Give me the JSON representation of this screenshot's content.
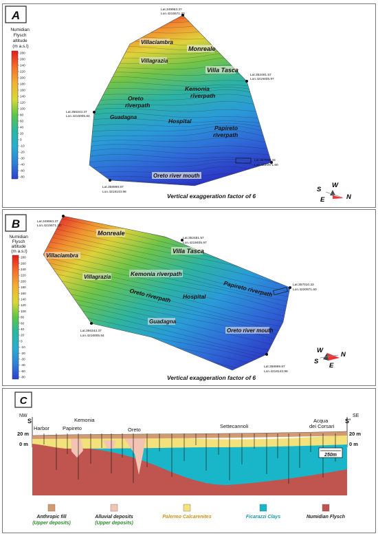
{
  "panels": {
    "a": {
      "letter": "A",
      "legend_title": [
        "Numidian",
        "Flysch",
        "altitude",
        "(m a.s.l)"
      ],
      "legend_ticks": [
        "280",
        "260",
        "240",
        "220",
        "200",
        "180",
        "160",
        "140",
        "120",
        "100",
        "80",
        "60",
        "40",
        "20",
        "0",
        "-10",
        "-20",
        "-30",
        "-40",
        "-60",
        "-80"
      ],
      "place_labels": {
        "villaciambra": "Villaciambra",
        "monreale": "Monreale",
        "villagrazia": "Villagrazia",
        "villa_tasca": "Villa Tasca",
        "kemonia": "Kemonia riverpath",
        "oreto": "Oreto riverpath",
        "guadagna": "Guadagna",
        "hospital": "Hospital",
        "papireto": "Papireto riverpath",
        "mouth": "Oreto river mouth"
      },
      "coordinates": {
        "top": [
          "Lat.349963.37",
          "Lon.4215571.20"
        ],
        "right": [
          "Lat.352481.57",
          "Lon.4219405.97"
        ],
        "left": [
          "Lat.356343.37",
          "Lon.4216005.84"
        ],
        "east": [
          "Lat.357010.33",
          "Lon.4220971.60"
        ],
        "bottom": [
          "Lat.358999.87",
          "Lon.4218143.98"
        ]
      },
      "exaggeration": "Vertical exaggeration factor of 6",
      "compass": {
        "s": "S",
        "w": "W",
        "e": "E",
        "n": "N"
      }
    },
    "b": {
      "letter": "B",
      "legend_title": [
        "Numidian",
        "Flysch",
        "altitude",
        "(m a.s.l)"
      ],
      "legend_ticks": [
        "280",
        "260",
        "240",
        "220",
        "200",
        "180",
        "160",
        "140",
        "120",
        "100",
        "80",
        "60",
        "40",
        "20",
        "0",
        "-10",
        "-20",
        "-30",
        "-40",
        "-60",
        "-80"
      ],
      "place_labels": {
        "monreale": "Monreale",
        "villaciambra": "Villaciambra",
        "villa_tasca": "Villa Tasca",
        "villagrazia": "Villagrazia",
        "kemonia": "Kemonia riverpath",
        "papireto": "Papireto riverpath",
        "oreto": "Oreto riverpath",
        "hospital": "Hospital",
        "guadagna": "Guadagna",
        "mouth": "Oreto river mouth"
      },
      "coordinates": {
        "top": [
          "Lat.349963.37",
          "Lon.4215571.20"
        ],
        "mid": [
          "Lat.352481.57",
          "Lon.4219405.97"
        ],
        "east": [
          "Lat.357010.33",
          "Lon.4220971.60"
        ],
        "left": [
          "Lat.356343.37",
          "Lon.4216005.84"
        ],
        "bottom": [
          "Lat.358999.87",
          "Lon.4218143.98"
        ]
      },
      "exaggeration": "Vertical exaggeration factor of 6",
      "compass": {
        "w": "W",
        "n": "N",
        "s": "S",
        "e": "E"
      }
    },
    "c": {
      "letter": "C",
      "dir_left": "NW",
      "dir_right": "SE",
      "end_left": "S",
      "end_right": "S'",
      "elev_20": "20 m",
      "elev_0": "0 m",
      "places": {
        "harbor": "Harbor",
        "papireto": "Papireto",
        "kemonia": "Kemonia",
        "oreto": "Oreto",
        "settecannoli": "Settecannoli",
        "acqua1": "Acqua",
        "acqua2": "dei Corsari"
      },
      "scale": "250m"
    }
  },
  "legend": {
    "items": [
      {
        "label": "Anthropic fill",
        "sub": "(Upper deposits)",
        "color": "#d39a72",
        "label_color": "#222222",
        "sub_color": "#2a8a2a"
      },
      {
        "label": "Alluvial deposits",
        "sub": "(Upper deposits)",
        "color": "#f3c4b4",
        "label_color": "#222222",
        "sub_color": "#2a8a2a"
      },
      {
        "label": "Palermo Calcarenites",
        "sub": "",
        "color": "#f3e27c",
        "label_color": "#c99418",
        "sub_color": ""
      },
      {
        "label": "Ficarazzi Clays",
        "sub": "",
        "color": "#18b6c8",
        "label_color": "#1a9aa8",
        "sub_color": ""
      },
      {
        "label": "Numidian Flysch",
        "sub": "",
        "color": "#c0554f",
        "label_color": "#222222",
        "sub_color": ""
      }
    ]
  }
}
